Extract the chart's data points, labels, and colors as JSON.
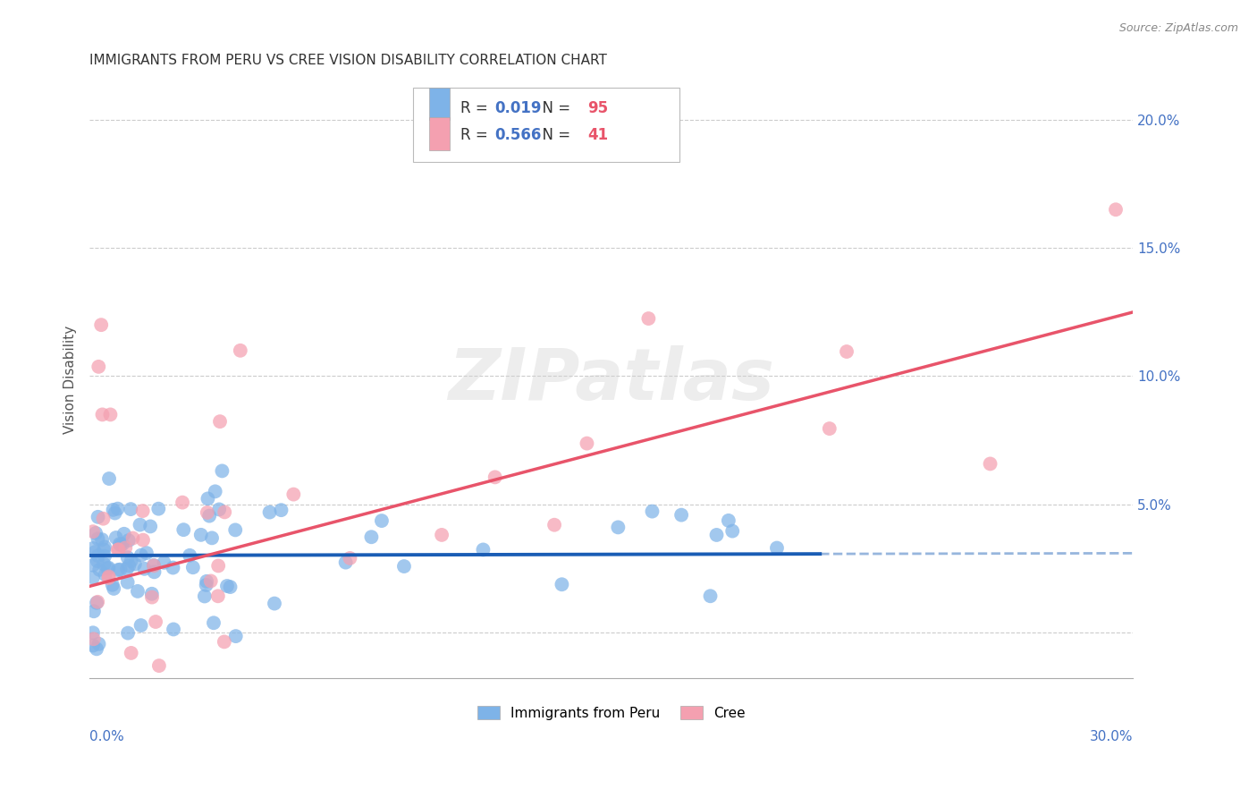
{
  "title": "IMMIGRANTS FROM PERU VS CREE VISION DISABILITY CORRELATION CHART",
  "source": "Source: ZipAtlas.com",
  "ylabel": "Vision Disability",
  "xlim": [
    0.0,
    0.3
  ],
  "ylim": [
    -0.018,
    0.215
  ],
  "ytick_vals": [
    0.2,
    0.15,
    0.1,
    0.05,
    0.0
  ],
  "ytick_labels": [
    "20.0%",
    "15.0%",
    "10.0%",
    "5.0%",
    ""
  ],
  "legend_peru_R": "0.019",
  "legend_peru_N": "95",
  "legend_cree_R": "0.566",
  "legend_cree_N": "41",
  "peru_color": "#7eb3e8",
  "cree_color": "#f4a0b0",
  "peru_line_color": "#1a5db5",
  "cree_line_color": "#e8546a",
  "cree_line_y_start": 0.018,
  "cree_line_y_end": 0.125,
  "peru_line_y_intercept": 0.03,
  "peru_line_slope": 0.003,
  "peru_line_solid_end": 0.21,
  "watermark": "ZIPatlas"
}
